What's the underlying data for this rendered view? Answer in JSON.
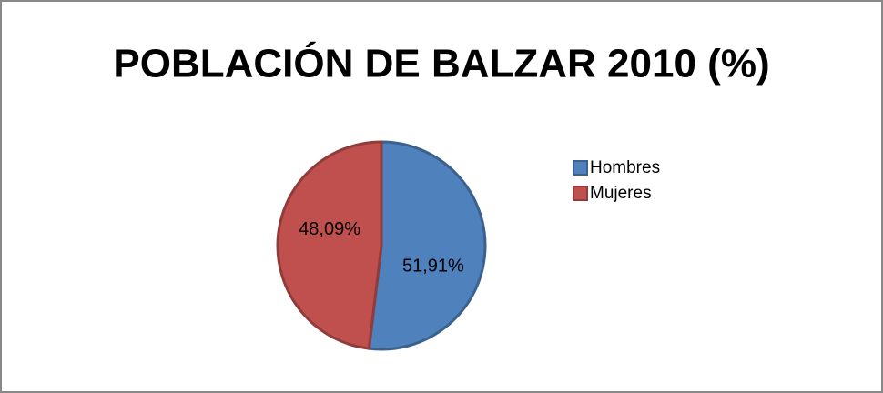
{
  "chart_data": {
    "type": "pie",
    "title": "POBLACIÓN DE BALZAR 2010 (%)",
    "categories": [
      "Hombres",
      "Mujeres"
    ],
    "values": [
      51.91,
      48.09
    ],
    "value_labels": [
      "51,91%",
      "48,09%"
    ],
    "colors": [
      "#4f81bd",
      "#c0504d"
    ],
    "legend": "right"
  }
}
